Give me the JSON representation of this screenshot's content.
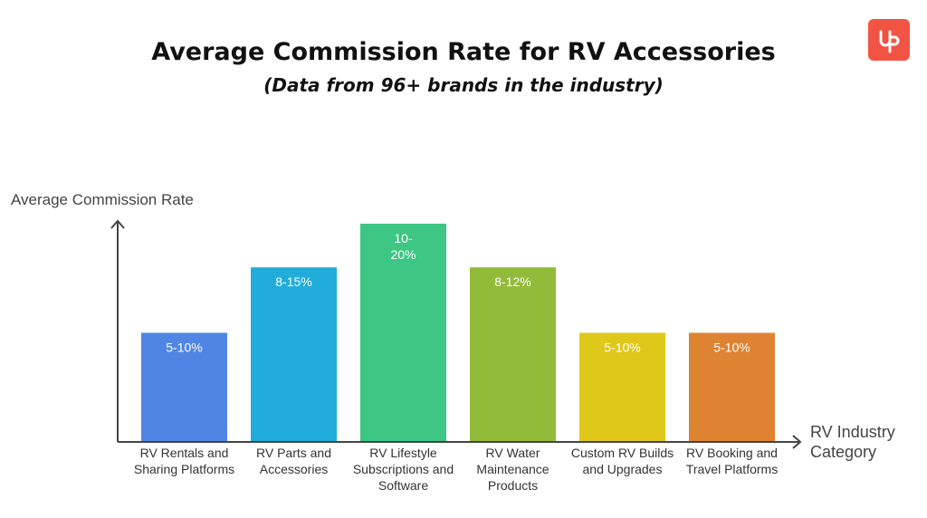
{
  "chart_data": {
    "type": "bar",
    "title": "Average Commission Rate for RV Accessories",
    "subtitle": "(Data from 96+ brands in the industry)",
    "ylabel": "Average Commission Rate",
    "xlabel": "RV Industry Category",
    "categories": [
      "RV Rentals and Sharing Platforms",
      "RV Parts and Accessories",
      "RV Lifestyle Subscriptions and Software",
      "RV Water Maintenance Products",
      "Custom RV Builds and Upgrades",
      "RV Booking and Travel Platforms"
    ],
    "values": [
      5,
      8,
      10,
      8,
      5,
      5
    ],
    "data_labels": [
      "5-10%",
      "8-15%",
      "10-\n20%",
      "8-12%",
      "5-10%",
      "5-10%"
    ],
    "ylim": [
      0,
      10
    ],
    "grid": false,
    "colors": [
      "#4f86e3",
      "#22acd9",
      "#3ec684",
      "#92bb3a",
      "#dfc81a",
      "#de8331"
    ]
  },
  "logo": {
    "text": "Up",
    "color": "#f25444"
  }
}
